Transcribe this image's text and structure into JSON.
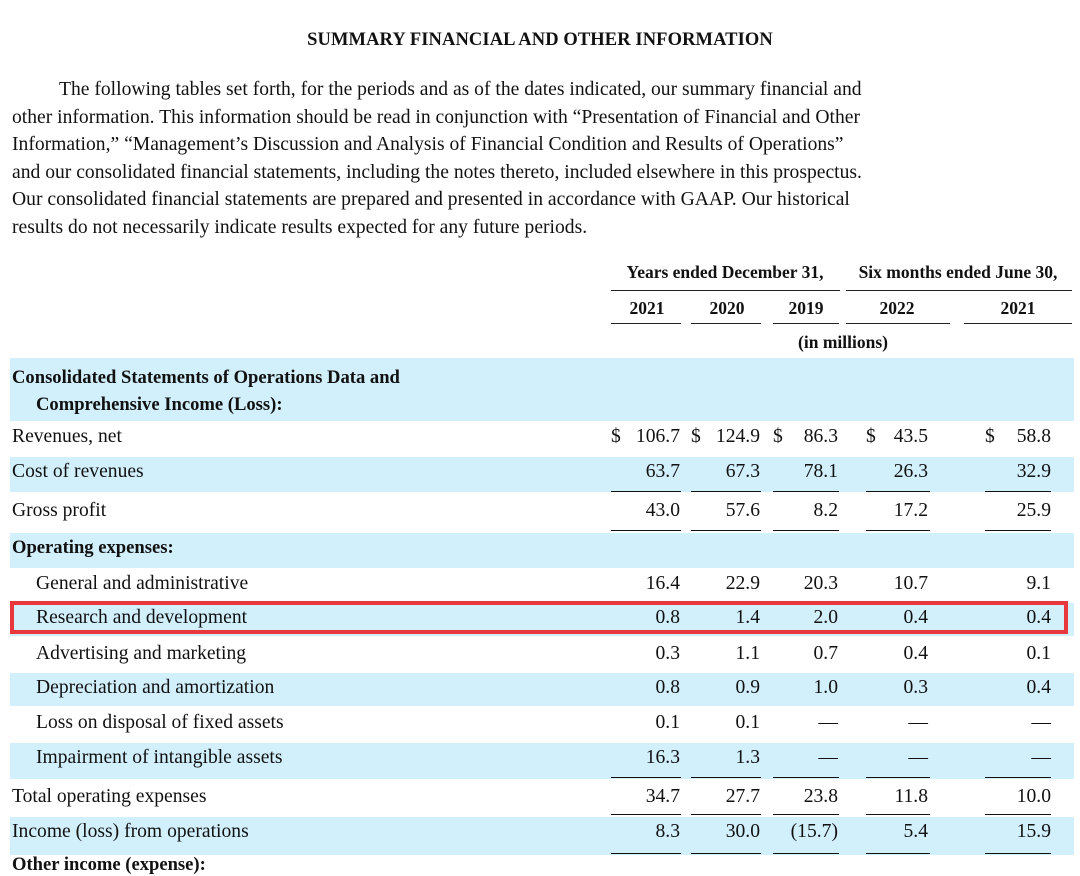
{
  "title": "SUMMARY FINANCIAL AND OTHER INFORMATION",
  "intro_lines": [
    "The following tables set forth, for the periods and as of the dates indicated, our summary financial and",
    "other information. This information should be read in conjunction with “Presentation of Financial and Other",
    "Information,” “Management’s Discussion and Analysis of Financial Condition and Results of Operations”",
    "and our consolidated financial statements, including the notes thereto, included elsewhere in this prospectus.",
    "Our consolidated financial statements are prepared and presented in accordance with GAAP. Our historical",
    "results do not necessarily indicate results expected for any future periods."
  ],
  "table": {
    "group_headers": [
      "Years ended December 31,",
      "Six months ended June 30,"
    ],
    "years": [
      "2021",
      "2020",
      "2019",
      "2022",
      "2021"
    ],
    "units": "(in millions)",
    "rows": [
      {
        "label": "Consolidated Statements of Operations Data and",
        "label2": "Comprehensive Income (Loss):",
        "type": "section"
      },
      {
        "label": "Revenues, net",
        "values": [
          "106.7",
          "124.9",
          "86.3",
          "43.5",
          "58.8"
        ],
        "dollar": true
      },
      {
        "label": "Cost of revenues",
        "values": [
          "63.7",
          "67.3",
          "78.1",
          "26.3",
          "32.9"
        ]
      },
      {
        "label": "Gross profit",
        "values": [
          "43.0",
          "57.6",
          "8.2",
          "17.2",
          "25.9"
        ]
      },
      {
        "label": "Operating expenses:",
        "type": "section"
      },
      {
        "label": "General and administrative",
        "values": [
          "16.4",
          "22.9",
          "20.3",
          "10.7",
          "9.1"
        ],
        "indent": true
      },
      {
        "label": "Research and development",
        "values": [
          "0.8",
          "1.4",
          "2.0",
          "0.4",
          "0.4"
        ],
        "indent": true,
        "highlighted": true
      },
      {
        "label": "Advertising and marketing",
        "values": [
          "0.3",
          "1.1",
          "0.7",
          "0.4",
          "0.1"
        ],
        "indent": true
      },
      {
        "label": "Depreciation and amortization",
        "values": [
          "0.8",
          "0.9",
          "1.0",
          "0.3",
          "0.4"
        ],
        "indent": true
      },
      {
        "label": "Loss on disposal of fixed assets",
        "values": [
          "0.1",
          "0.1",
          "—",
          "—",
          "—"
        ],
        "indent": true
      },
      {
        "label": "Impairment of intangible assets",
        "values": [
          "16.3",
          "1.3",
          "—",
          "—",
          "—"
        ],
        "indent": true
      },
      {
        "label": "Total operating expenses",
        "values": [
          "34.7",
          "27.7",
          "23.8",
          "11.8",
          "10.0"
        ]
      },
      {
        "label": "Income (loss) from operations",
        "values": [
          "8.3",
          "30.0",
          "(15.7)",
          "5.4",
          "15.9"
        ]
      }
    ],
    "currency_symbol": "$",
    "cutoff_text": "Other income (expense):"
  },
  "colors": {
    "row_shade": "#d2effc",
    "highlight": "#e8383d"
  }
}
